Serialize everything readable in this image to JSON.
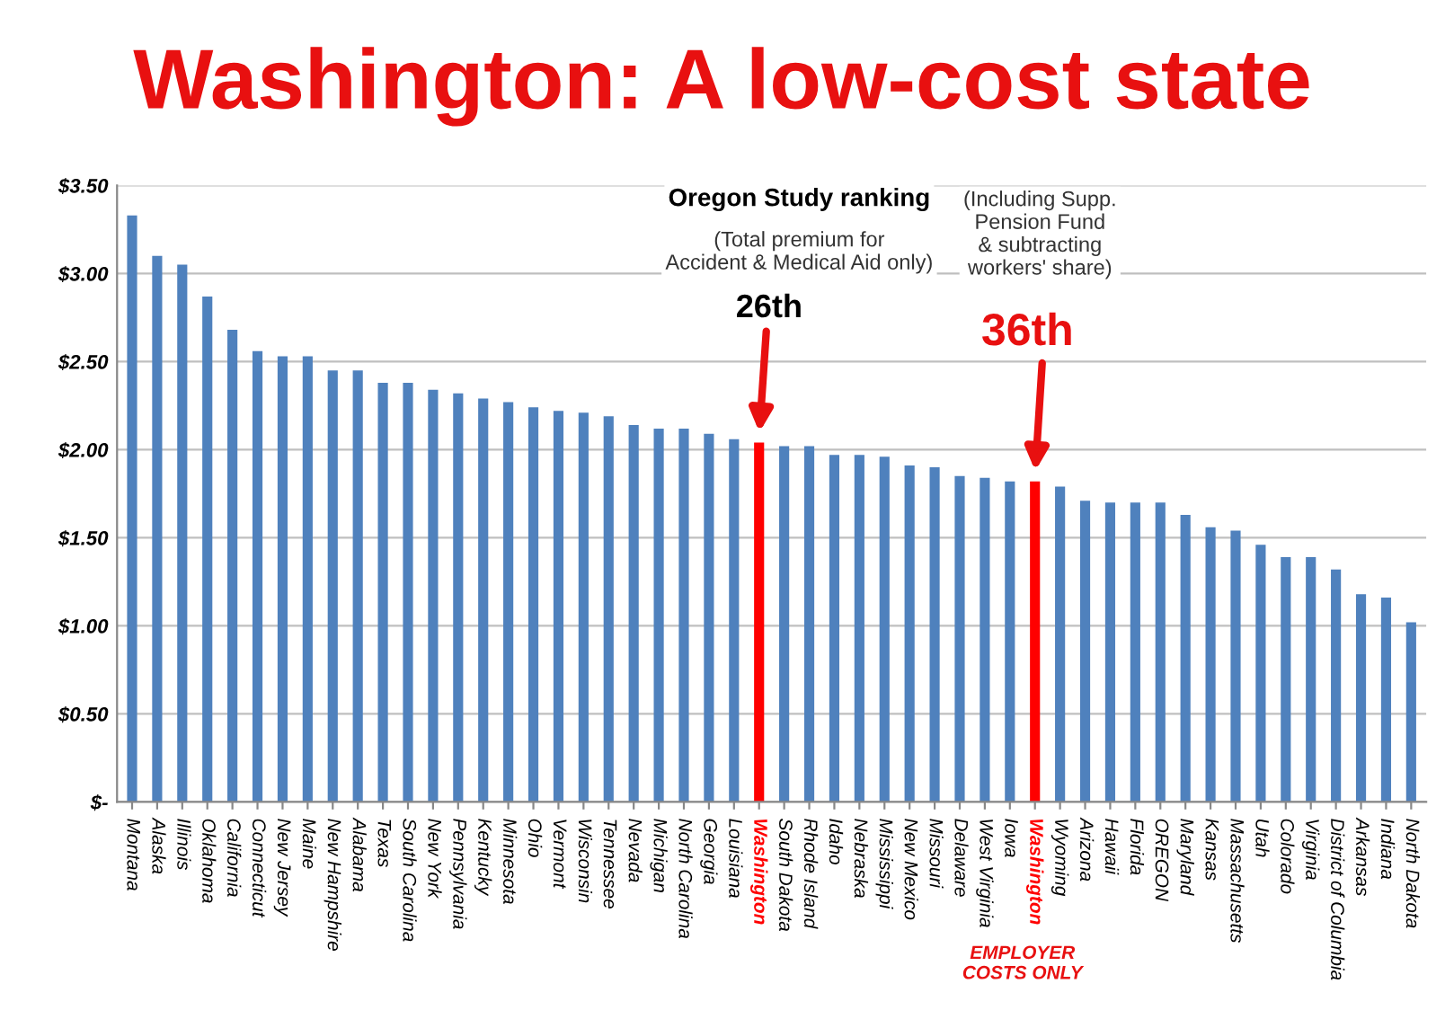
{
  "chart_data": {
    "type": "bar",
    "title": "Washington: A low-cost state",
    "categories": [
      "Montana",
      "Alaska",
      "Illinois",
      "Oklahoma",
      "California",
      "Connecticut",
      "New Jersey",
      "Maine",
      "New Hampshire",
      "Alabama",
      "Texas",
      "South Carolina",
      "New York",
      "Pennsylvania",
      "Kentucky",
      "Minnesota",
      "Ohio",
      "Vermont",
      "Wisconsin",
      "Tennessee",
      "Nevada",
      "Michigan",
      "North Carolina",
      "Georgia",
      "Louisiana",
      "Washington",
      "South Dakota",
      "Rhode Island",
      "Idaho",
      "Nebraska",
      "Mississippi",
      "New Mexico",
      "Missouri",
      "Delaware",
      "West Virginia",
      "Iowa",
      "Washington",
      "Wyoming",
      "Arizona",
      "Hawaii",
      "Florida",
      "OREGON",
      "Maryland",
      "Kansas",
      "Massachusetts",
      "Utah",
      "Colorado",
      "Virginia",
      "District of Columbia",
      "Arkansas",
      "Indiana",
      "North Dakota"
    ],
    "values": [
      3.33,
      3.1,
      3.05,
      2.87,
      2.68,
      2.56,
      2.53,
      2.53,
      2.45,
      2.45,
      2.38,
      2.38,
      2.34,
      2.32,
      2.29,
      2.27,
      2.24,
      2.22,
      2.21,
      2.19,
      2.14,
      2.12,
      2.12,
      2.09,
      2.06,
      2.04,
      2.02,
      2.02,
      1.97,
      1.97,
      1.96,
      1.91,
      1.9,
      1.85,
      1.84,
      1.82,
      1.82,
      1.79,
      1.71,
      1.7,
      1.7,
      1.7,
      1.63,
      1.56,
      1.54,
      1.46,
      1.39,
      1.39,
      1.32,
      1.18,
      1.16,
      1.02
    ],
    "color": "#4f81bd",
    "colors": [
      "#4f81bd",
      "#4f81bd",
      "#4f81bd",
      "#4f81bd",
      "#4f81bd",
      "#4f81bd",
      "#4f81bd",
      "#4f81bd",
      "#4f81bd",
      "#4f81bd",
      "#4f81bd",
      "#4f81bd",
      "#4f81bd",
      "#4f81bd",
      "#4f81bd",
      "#4f81bd",
      "#4f81bd",
      "#4f81bd",
      "#4f81bd",
      "#4f81bd",
      "#4f81bd",
      "#4f81bd",
      "#4f81bd",
      "#4f81bd",
      "#4f81bd",
      "#ff0000",
      "#4f81bd",
      "#4f81bd",
      "#4f81bd",
      "#4f81bd",
      "#4f81bd",
      "#4f81bd",
      "#4f81bd",
      "#4f81bd",
      "#4f81bd",
      "#4f81bd",
      "#ff0000",
      "#4f81bd",
      "#4f81bd",
      "#4f81bd",
      "#4f81bd",
      "#4f81bd",
      "#4f81bd",
      "#4f81bd",
      "#4f81bd",
      "#4f81bd",
      "#4f81bd",
      "#4f81bd",
      "#4f81bd",
      "#4f81bd",
      "#4f81bd",
      "#4f81bd"
    ],
    "ylim": [
      0,
      3.5
    ],
    "yticks": [
      {
        "value": 0,
        "label": "$-"
      },
      {
        "value": 0.5,
        "label": "$0.50"
      },
      {
        "value": 1,
        "label": "$1.00"
      },
      {
        "value": 1.5,
        "label": "$1.50"
      },
      {
        "value": 2,
        "label": "$2.00"
      },
      {
        "value": 2.5,
        "label": "$2.50"
      },
      {
        "value": 3,
        "label": "$3.00"
      },
      {
        "value": 3.5,
        "label": "$3.50"
      }
    ],
    "grid": "y",
    "annotations": [
      "Oregon Study ranking",
      "(Total premium for\nAccident & Medical Aid only)",
      "26th",
      "(Including Supp.\nPension Fund\n& subtracting\nworkers' share)",
      "36th",
      "EMPLOYER\nCOSTS ONLY"
    ]
  }
}
